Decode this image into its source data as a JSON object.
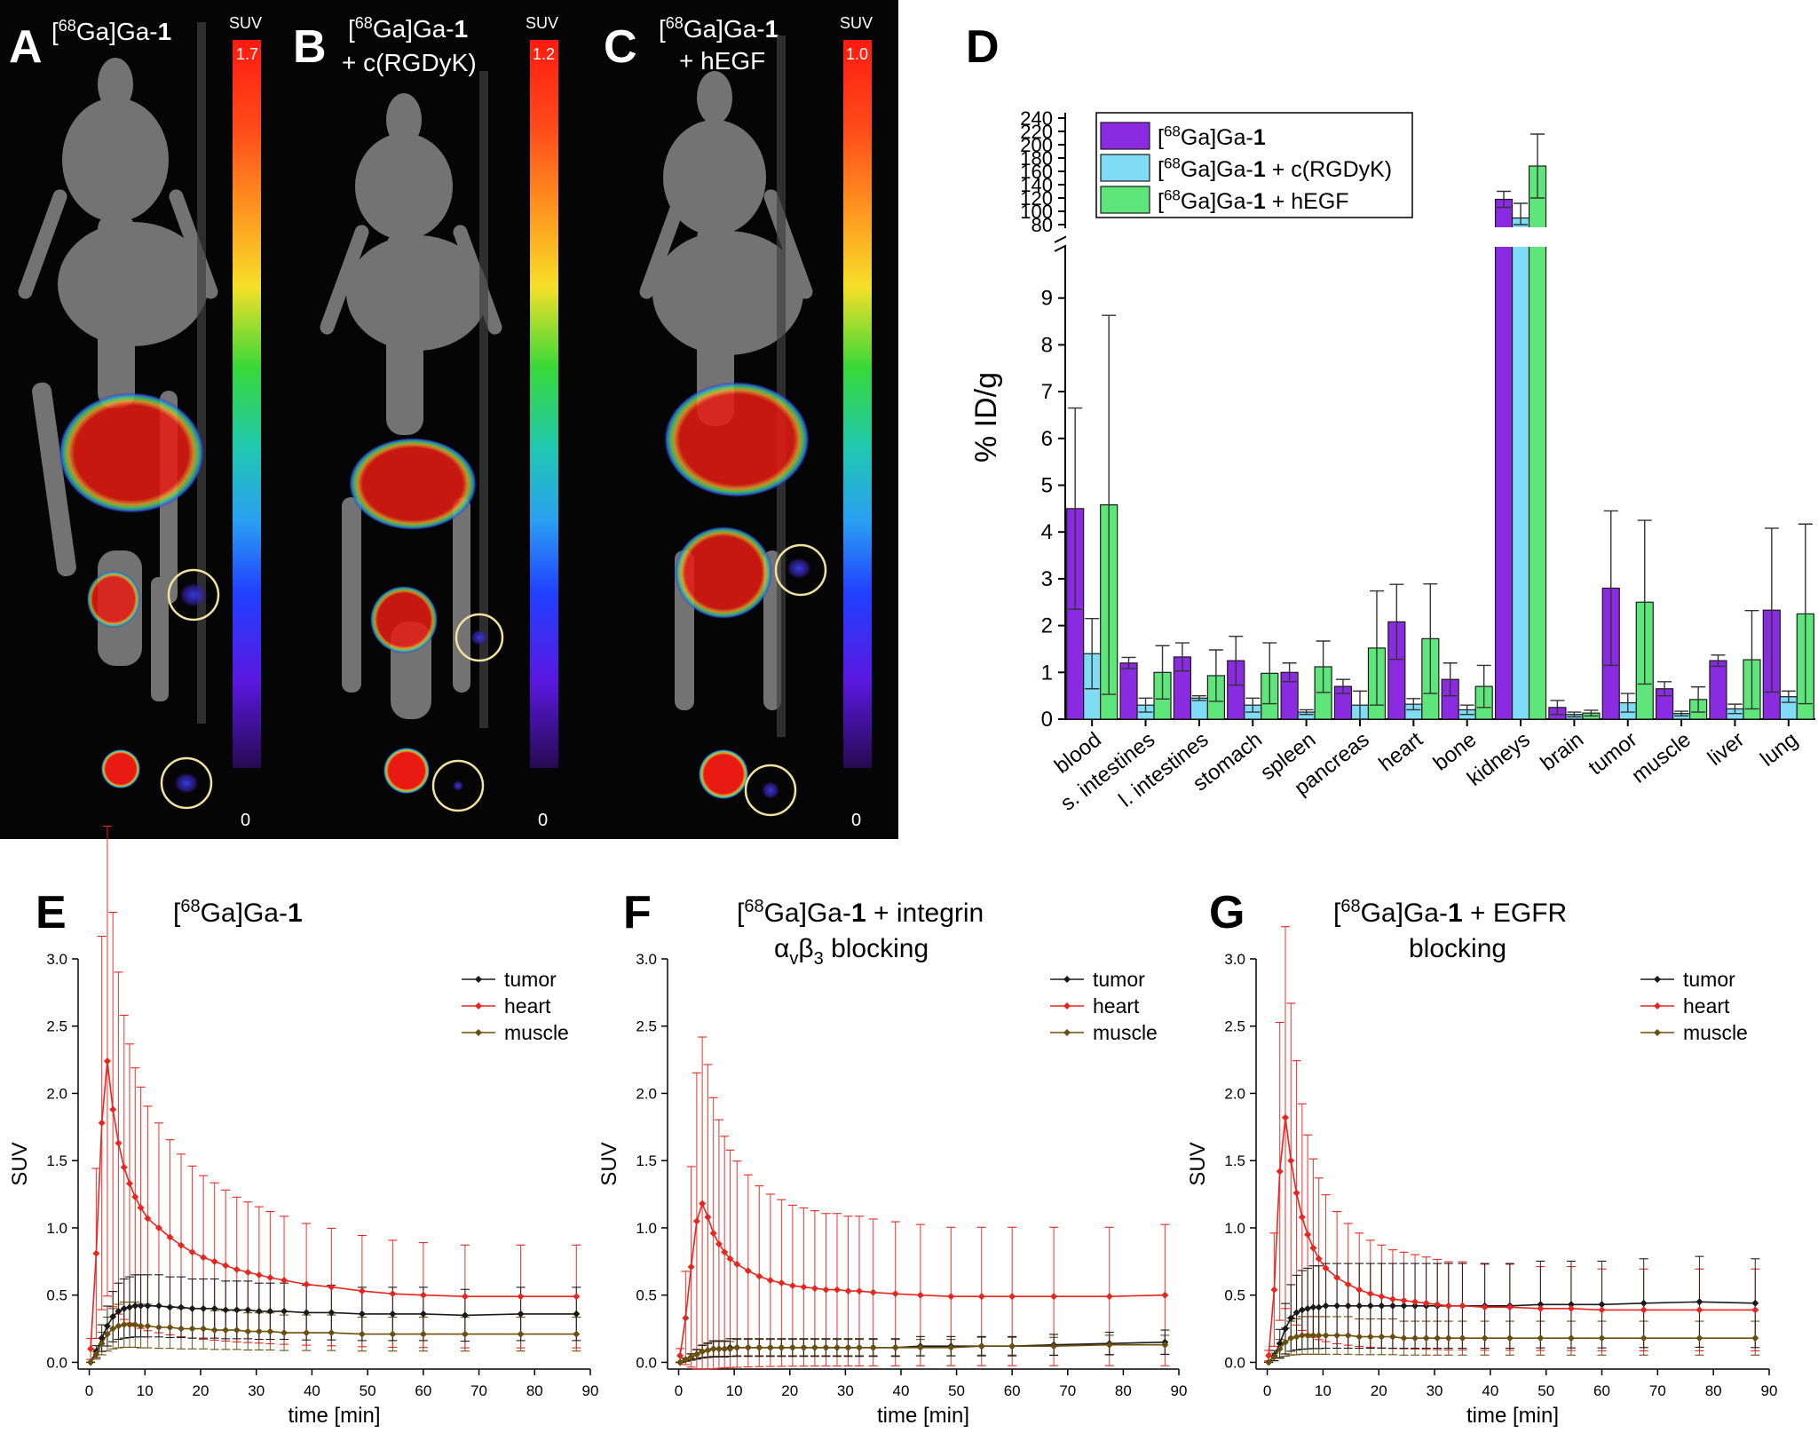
{
  "colors": {
    "ga1": "#8a2be2",
    "rgd": "#7fdcf4",
    "egf": "#5ee67a",
    "tumor": "#1a1a1a",
    "heart": "#e8261f",
    "muscle": "#6b4f0e",
    "pet_bg": "#050505",
    "circle": "#f2e2a0"
  },
  "panels": {
    "A": {
      "label": "A",
      "title": "[68Ga]Ga-1",
      "title_parts": [
        "[",
        "68",
        "Ga]Ga-",
        "1"
      ],
      "title2": "",
      "suv_label": "SUV",
      "max": "1.7",
      "min": "0"
    },
    "B": {
      "label": "B",
      "title": "[68Ga]Ga-1",
      "title_parts": [
        "[",
        "68",
        "Ga]Ga-",
        "1"
      ],
      "title2": "+ c(RGDyK)",
      "suv_label": "SUV",
      "max": "1.2",
      "min": "0"
    },
    "C": {
      "label": "C",
      "title": "[68Ga]Ga-1",
      "title_parts": [
        "[",
        "68",
        "Ga]Ga-",
        "1"
      ],
      "title2": "+ hEGF",
      "suv_label": "SUV",
      "max": "1.0",
      "min": "0"
    },
    "D": {
      "label": "D"
    },
    "E": {
      "label": "E",
      "title_parts": [
        "[",
        "68",
        "Ga]Ga-",
        "1",
        ""
      ],
      "line2": ""
    },
    "F": {
      "label": "F",
      "title_parts": [
        "[",
        "68",
        "Ga]Ga-",
        "1",
        " + integrin"
      ],
      "line2": "αvβ3 blocking",
      "line2_parts": [
        "α",
        "v",
        "β",
        "3",
        " blocking"
      ]
    },
    "G": {
      "label": "G",
      "title_parts": [
        "[",
        "68",
        "Ga]Ga-",
        "1",
        " + EGFR"
      ],
      "line2": "blocking"
    }
  },
  "chart_data": [
    {
      "id": "D",
      "type": "bar",
      "ylabel": "% ID/g",
      "ylim_lower": [
        0,
        10
      ],
      "ylim_upper": [
        80,
        240
      ],
      "yticks_lower": [
        "0",
        "1",
        "2",
        "3",
        "4",
        "5",
        "6",
        "7",
        "8",
        "9"
      ],
      "yticks_upper": [
        "80",
        "100",
        "120",
        "140",
        "160",
        "180",
        "200",
        "220",
        "240"
      ],
      "categories": [
        "blood",
        "s. intestines",
        "l. intestines",
        "stomach",
        "spleen",
        "pancreas",
        "heart",
        "bone",
        "kidneys",
        "brain",
        "tumor",
        "muscle",
        "liver",
        "lung"
      ],
      "legend": [
        {
          "name": "[68Ga]Ga-1",
          "parts": [
            "[",
            "68",
            "Ga]Ga-",
            "1",
            ""
          ]
        },
        {
          "name": "[68Ga]Ga-1 + c(RGDyK)",
          "parts": [
            "[",
            "68",
            "Ga]Ga-",
            "1",
            " + c(RGDyK)"
          ]
        },
        {
          "name": "[68Ga]Ga-1 + hEGF",
          "parts": [
            "[",
            "68",
            "Ga]Ga-",
            "1",
            " + hEGF"
          ]
        }
      ],
      "series": [
        {
          "name": "[68Ga]Ga-1",
          "color": "#8a2be2",
          "values": [
            4.5,
            1.2,
            1.33,
            1.25,
            1.0,
            0.7,
            2.08,
            0.85,
            118,
            0.25,
            2.8,
            0.65,
            1.25,
            2.33
          ],
          "errors": [
            2.15,
            0.12,
            0.3,
            0.52,
            0.2,
            0.15,
            0.8,
            0.35,
            12,
            0.15,
            1.65,
            0.15,
            0.12,
            1.75
          ]
        },
        {
          "name": "[68Ga]Ga-1 + c(RGDyK)",
          "color": "#7fdcf4",
          "values": [
            1.4,
            0.3,
            0.45,
            0.3,
            0.15,
            0.3,
            0.32,
            0.2,
            90,
            0.1,
            0.35,
            0.12,
            0.22,
            0.48
          ],
          "errors": [
            0.75,
            0.15,
            0.05,
            0.15,
            0.05,
            0.3,
            0.12,
            0.1,
            22,
            0.05,
            0.2,
            0.05,
            0.1,
            0.12
          ]
        },
        {
          "name": "[68Ga]Ga-1 + hEGF",
          "color": "#5ee67a",
          "values": [
            4.58,
            1.0,
            0.93,
            0.98,
            1.12,
            1.52,
            1.72,
            0.7,
            168,
            0.13,
            2.5,
            0.42,
            1.27,
            2.25
          ],
          "errors": [
            4.05,
            0.57,
            0.55,
            0.65,
            0.55,
            1.22,
            1.17,
            0.45,
            48,
            0.06,
            1.75,
            0.27,
            1.05,
            1.92
          ]
        }
      ]
    },
    {
      "id": "E",
      "type": "line",
      "xlabel": "time [min]",
      "ylabel": "SUV",
      "xlim": [
        -2,
        90
      ],
      "ylim": [
        -0.05,
        3.0
      ],
      "xticks": [
        "0",
        "10",
        "20",
        "30",
        "40",
        "50",
        "60",
        "70",
        "80",
        "90"
      ],
      "yticks": [
        "0.0",
        "0.5",
        "1.0",
        "1.5",
        "2.0",
        "2.5",
        "3.0"
      ],
      "legend": [
        "tumor",
        "heart",
        "muscle"
      ],
      "x": [
        0.25,
        1.25,
        2.25,
        3.25,
        4.25,
        5.25,
        6.25,
        7.25,
        8.25,
        9.25,
        10.5,
        12.5,
        14.5,
        16.5,
        18.5,
        20.5,
        22.5,
        24.5,
        26.5,
        28.5,
        30.5,
        32.5,
        35,
        39,
        43.5,
        49,
        54.5,
        60,
        67.5,
        77.5,
        87.5
      ],
      "series": [
        {
          "name": "tumor",
          "color": "#1a1a1a",
          "values": [
            0.0,
            0.08,
            0.18,
            0.27,
            0.34,
            0.38,
            0.4,
            0.41,
            0.42,
            0.42,
            0.42,
            0.42,
            0.41,
            0.41,
            0.4,
            0.4,
            0.4,
            0.39,
            0.39,
            0.39,
            0.38,
            0.38,
            0.38,
            0.37,
            0.37,
            0.36,
            0.36,
            0.36,
            0.35,
            0.36,
            0.36
          ],
          "err_scale": 0.55
        },
        {
          "name": "heart",
          "color": "#e8261f",
          "values": [
            0.1,
            0.81,
            1.78,
            2.24,
            1.88,
            1.63,
            1.45,
            1.33,
            1.23,
            1.15,
            1.07,
            1.0,
            0.93,
            0.87,
            0.82,
            0.78,
            0.75,
            0.72,
            0.69,
            0.67,
            0.65,
            0.63,
            0.61,
            0.58,
            0.56,
            0.53,
            0.51,
            0.5,
            0.49,
            0.49,
            0.49
          ],
          "err_scale": 0.78
        },
        {
          "name": "muscle",
          "color": "#6b4f0e",
          "values": [
            0.0,
            0.06,
            0.14,
            0.21,
            0.25,
            0.27,
            0.28,
            0.28,
            0.28,
            0.27,
            0.27,
            0.26,
            0.26,
            0.25,
            0.25,
            0.25,
            0.24,
            0.24,
            0.24,
            0.23,
            0.23,
            0.23,
            0.22,
            0.22,
            0.22,
            0.21,
            0.21,
            0.21,
            0.21,
            0.21,
            0.21
          ],
          "err_scale": 0.6
        }
      ]
    },
    {
      "id": "F",
      "type": "line",
      "xlabel": "time [min]",
      "ylabel": "SUV",
      "xlim": [
        -2,
        90
      ],
      "ylim": [
        -0.05,
        3.0
      ],
      "xticks": [
        "0",
        "10",
        "20",
        "30",
        "40",
        "50",
        "60",
        "70",
        "80",
        "90"
      ],
      "yticks": [
        "0.0",
        "0.5",
        "1.0",
        "1.5",
        "2.0",
        "2.5",
        "3.0"
      ],
      "legend": [
        "tumor",
        "heart",
        "muscle"
      ],
      "x": [
        0.25,
        1.25,
        2.25,
        3.25,
        4.25,
        5.25,
        6.25,
        7.25,
        8.25,
        9.25,
        10.5,
        12.5,
        14.5,
        16.5,
        18.5,
        20.5,
        22.5,
        24.5,
        26.5,
        28.5,
        30.5,
        32.5,
        35,
        39,
        43.5,
        49,
        54.5,
        60,
        67.5,
        77.5,
        87.5
      ],
      "series": [
        {
          "name": "tumor",
          "color": "#1a1a1a",
          "values": [
            0.0,
            0.02,
            0.04,
            0.06,
            0.08,
            0.09,
            0.1,
            0.1,
            0.1,
            0.11,
            0.11,
            0.11,
            0.11,
            0.11,
            0.11,
            0.11,
            0.11,
            0.11,
            0.11,
            0.11,
            0.11,
            0.11,
            0.11,
            0.11,
            0.12,
            0.12,
            0.12,
            0.12,
            0.13,
            0.14,
            0.15
          ],
          "err_scale": 0.6
        },
        {
          "name": "heart",
          "color": "#e8261f",
          "values": [
            0.05,
            0.33,
            0.71,
            1.05,
            1.18,
            1.08,
            0.96,
            0.88,
            0.82,
            0.77,
            0.73,
            0.68,
            0.64,
            0.61,
            0.59,
            0.57,
            0.56,
            0.55,
            0.54,
            0.54,
            0.53,
            0.53,
            0.52,
            0.51,
            0.5,
            0.49,
            0.49,
            0.49,
            0.49,
            0.49,
            0.5
          ],
          "err_scale": 1.05
        },
        {
          "name": "muscle",
          "color": "#6b4f0e",
          "values": [
            0.0,
            0.02,
            0.04,
            0.06,
            0.08,
            0.09,
            0.1,
            0.1,
            0.1,
            0.1,
            0.11,
            0.11,
            0.11,
            0.11,
            0.11,
            0.11,
            0.11,
            0.11,
            0.11,
            0.11,
            0.11,
            0.11,
            0.11,
            0.11,
            0.11,
            0.11,
            0.12,
            0.12,
            0.12,
            0.13,
            0.13
          ],
          "err_scale": 0.55
        }
      ]
    },
    {
      "id": "G",
      "type": "line",
      "xlabel": "time [min]",
      "ylabel": "SUV",
      "xlim": [
        -2,
        90
      ],
      "ylim": [
        -0.05,
        3.0
      ],
      "xticks": [
        "0",
        "10",
        "20",
        "30",
        "40",
        "50",
        "60",
        "70",
        "80",
        "90"
      ],
      "yticks": [
        "0.0",
        "0.5",
        "1.0",
        "1.5",
        "2.0",
        "2.5",
        "3.0"
      ],
      "legend": [
        "tumor",
        "heart",
        "muscle"
      ],
      "x": [
        0.25,
        1.25,
        2.25,
        3.25,
        4.25,
        5.25,
        6.25,
        7.25,
        8.25,
        9.25,
        10.5,
        12.5,
        14.5,
        16.5,
        18.5,
        20.5,
        22.5,
        24.5,
        26.5,
        28.5,
        30.5,
        32.5,
        35,
        39,
        43.5,
        49,
        54.5,
        60,
        67.5,
        77.5,
        87.5
      ],
      "series": [
        {
          "name": "tumor",
          "color": "#1a1a1a",
          "values": [
            0.0,
            0.05,
            0.14,
            0.25,
            0.33,
            0.37,
            0.39,
            0.4,
            0.41,
            0.41,
            0.42,
            0.42,
            0.42,
            0.42,
            0.42,
            0.42,
            0.42,
            0.42,
            0.42,
            0.42,
            0.42,
            0.42,
            0.42,
            0.42,
            0.42,
            0.43,
            0.43,
            0.43,
            0.44,
            0.45,
            0.44
          ],
          "err_scale": 0.75
        },
        {
          "name": "heart",
          "color": "#e8261f",
          "values": [
            0.05,
            0.54,
            1.42,
            1.82,
            1.5,
            1.26,
            1.08,
            0.95,
            0.85,
            0.77,
            0.7,
            0.63,
            0.58,
            0.54,
            0.51,
            0.49,
            0.47,
            0.46,
            0.45,
            0.44,
            0.43,
            0.42,
            0.42,
            0.41,
            0.41,
            0.4,
            0.4,
            0.39,
            0.39,
            0.39,
            0.39
          ],
          "err_scale": 0.78
        },
        {
          "name": "muscle",
          "color": "#6b4f0e",
          "values": [
            0.0,
            0.04,
            0.1,
            0.15,
            0.18,
            0.19,
            0.2,
            0.2,
            0.2,
            0.2,
            0.2,
            0.2,
            0.2,
            0.19,
            0.19,
            0.19,
            0.19,
            0.18,
            0.18,
            0.18,
            0.18,
            0.18,
            0.18,
            0.18,
            0.18,
            0.18,
            0.18,
            0.18,
            0.18,
            0.18,
            0.18
          ],
          "err_scale": 0.7
        }
      ]
    }
  ]
}
